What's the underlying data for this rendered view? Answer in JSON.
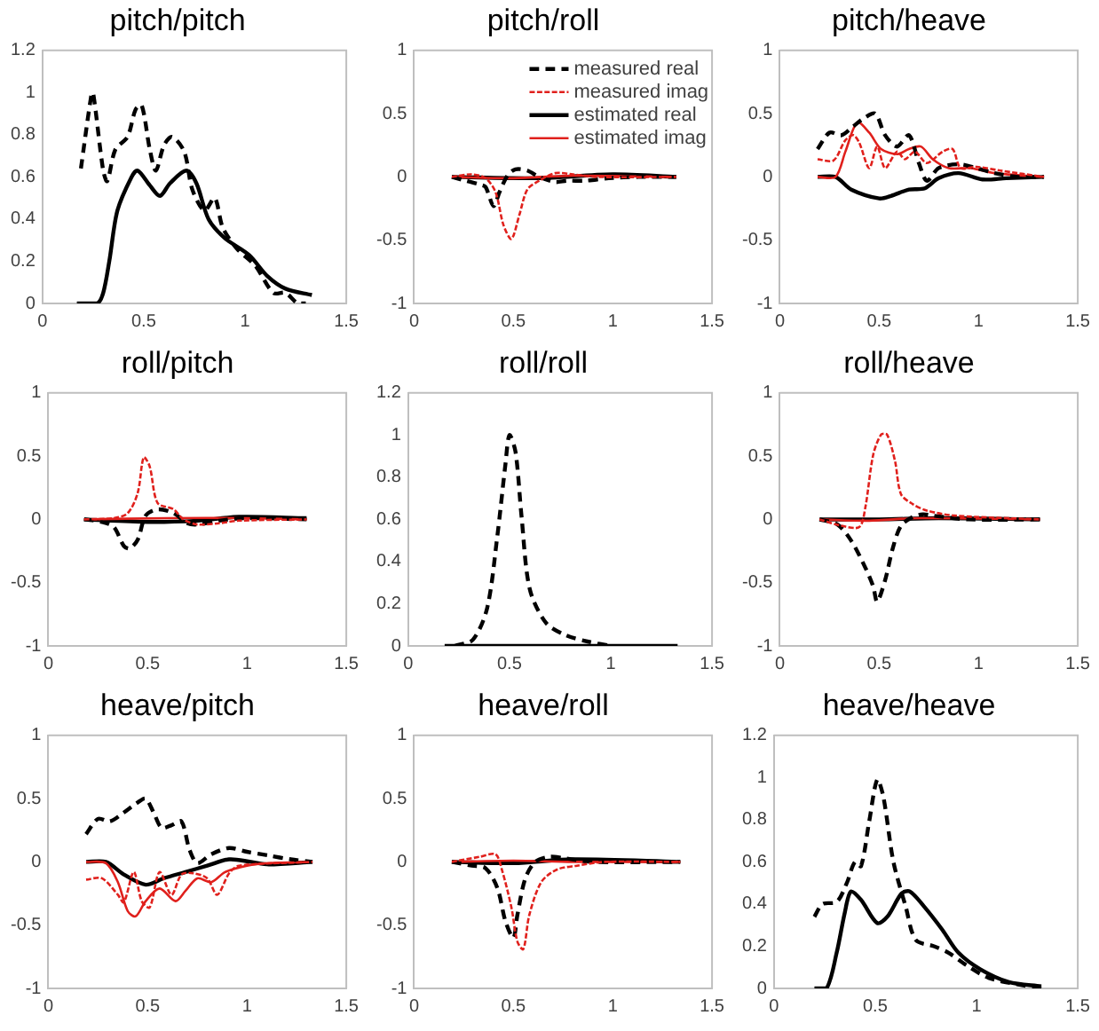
{
  "chart_data": [
    {
      "type": "line",
      "title": "pitch/pitch",
      "xlim": [
        0,
        1.5
      ],
      "xticks": [
        0,
        0.5,
        1,
        1.5
      ],
      "ylim": [
        0,
        1.2
      ],
      "yticks": [
        0,
        0.2,
        0.4,
        0.6,
        0.8,
        1,
        1.2
      ],
      "grid": false,
      "legend": false,
      "series": [
        {
          "color": "#000000",
          "line_style": "dashed",
          "x": [
            0.19,
            0.24,
            0.25,
            0.3,
            0.32,
            0.36,
            0.42,
            0.46,
            0.49,
            0.53,
            0.56,
            0.6,
            0.64,
            0.7,
            0.74,
            0.8,
            0.85,
            0.89,
            0.96,
            1.05,
            1.14,
            1.2,
            1.26,
            1.3
          ],
          "values": [
            0.64,
            0.98,
            1.0,
            0.63,
            0.58,
            0.73,
            0.79,
            0.92,
            0.94,
            0.73,
            0.63,
            0.75,
            0.79,
            0.72,
            0.54,
            0.44,
            0.5,
            0.36,
            0.26,
            0.18,
            0.05,
            0.05,
            0,
            0
          ]
        },
        {
          "color": "#000000",
          "line_style": "solid",
          "x": [
            0.17,
            0.27,
            0.3,
            0.33,
            0.37,
            0.44,
            0.47,
            0.53,
            0.58,
            0.63,
            0.71,
            0.76,
            0.82,
            0.9,
            1.02,
            1.11,
            1.2,
            1.33
          ],
          "values": [
            0,
            0,
            0.05,
            0.2,
            0.44,
            0.6,
            0.63,
            0.56,
            0.51,
            0.57,
            0.63,
            0.57,
            0.4,
            0.31,
            0.23,
            0.13,
            0.07,
            0.04
          ]
        }
      ]
    },
    {
      "type": "line",
      "title": "pitch/roll",
      "xlim": [
        0,
        1.5
      ],
      "xticks": [
        0,
        0.5,
        1,
        1.5
      ],
      "ylim": [
        -1,
        1
      ],
      "yticks": [
        -1,
        -0.5,
        0,
        0.5,
        1
      ],
      "grid": false,
      "legend": "top right",
      "series": [
        {
          "name": "measured real",
          "color": "#000000",
          "line_style": "dashed",
          "x": [
            0.19,
            0.26,
            0.33,
            0.36,
            0.4,
            0.43,
            0.47,
            0.51,
            0.57,
            0.63,
            0.71,
            0.77,
            0.86,
            0.98,
            1.13,
            1.32
          ],
          "values": [
            0,
            -0.03,
            -0.06,
            -0.08,
            -0.23,
            -0.12,
            0.01,
            0.06,
            0.05,
            0,
            -0.04,
            -0.03,
            -0.03,
            -0.01,
            0,
            0
          ]
        },
        {
          "name": "measured imag",
          "color": "#e0201c",
          "line_style": "dashed",
          "x": [
            0.19,
            0.29,
            0.36,
            0.41,
            0.45,
            0.49,
            0.53,
            0.57,
            0.63,
            0.71,
            0.8,
            0.92,
            1.32
          ],
          "values": [
            0,
            0.02,
            -0.01,
            -0.12,
            -0.38,
            -0.49,
            -0.3,
            -0.1,
            -0.03,
            0.03,
            0.02,
            0,
            0
          ]
        },
        {
          "name": "estimated real",
          "color": "#000000",
          "line_style": "solid",
          "x": [
            0.19,
            0.62,
            1.0,
            1.32
          ],
          "values": [
            0,
            -0.01,
            0.02,
            0
          ]
        },
        {
          "name": "estimated imag",
          "color": "#e0201c",
          "line_style": "solid",
          "x": [
            0.19,
            0.5,
            0.8,
            1.32
          ],
          "values": [
            0,
            -0.01,
            0.01,
            0
          ]
        }
      ]
    },
    {
      "type": "line",
      "title": "pitch/heave",
      "xlim": [
        0,
        1.5
      ],
      "xticks": [
        0,
        0.5,
        1,
        1.5
      ],
      "ylim": [
        -1,
        1
      ],
      "yticks": [
        -1,
        -0.5,
        0,
        0.5,
        1
      ],
      "grid": false,
      "legend": false,
      "series": [
        {
          "color": "#000000",
          "line_style": "dashed",
          "x": [
            0.19,
            0.25,
            0.31,
            0.37,
            0.42,
            0.48,
            0.53,
            0.59,
            0.65,
            0.7,
            0.74,
            0.8,
            0.9,
            0.99,
            1.08,
            1.2,
            1.33
          ],
          "values": [
            0.22,
            0.35,
            0.33,
            0.4,
            0.46,
            0.5,
            0.33,
            0.24,
            0.33,
            0.11,
            -0.03,
            0.07,
            0.1,
            0.07,
            0.03,
            0,
            0
          ]
        },
        {
          "color": "#e0201c",
          "line_style": "dashed",
          "x": [
            0.19,
            0.27,
            0.33,
            0.37,
            0.4,
            0.45,
            0.49,
            0.53,
            0.59,
            0.63,
            0.68,
            0.74,
            0.82,
            0.87,
            0.91,
            0.99,
            1.11,
            1.33
          ],
          "values": [
            0.14,
            0.13,
            0.29,
            0.33,
            0.27,
            0.07,
            0.24,
            0.07,
            0.2,
            0.14,
            0.2,
            0.11,
            0.2,
            0.22,
            0.07,
            0.08,
            0.05,
            0
          ]
        },
        {
          "color": "#000000",
          "line_style": "solid",
          "x": [
            0.19,
            0.28,
            0.36,
            0.5,
            0.56,
            0.65,
            0.73,
            0.8,
            0.9,
            1.02,
            1.14,
            1.33
          ],
          "values": [
            0,
            0,
            -0.1,
            -0.17,
            -0.15,
            -0.1,
            -0.09,
            -0.01,
            0.03,
            -0.02,
            -0.01,
            0
          ]
        },
        {
          "color": "#e0201c",
          "line_style": "solid",
          "x": [
            0.19,
            0.28,
            0.33,
            0.39,
            0.45,
            0.51,
            0.59,
            0.65,
            0.71,
            0.77,
            0.85,
            0.96,
            1.08,
            1.33
          ],
          "values": [
            0,
            0,
            0.2,
            0.43,
            0.35,
            0.22,
            0.18,
            0.22,
            0.24,
            0.14,
            0.07,
            0.07,
            0.03,
            0
          ]
        }
      ]
    },
    {
      "type": "line",
      "title": "roll/pitch",
      "xlim": [
        0,
        1.5
      ],
      "xticks": [
        0,
        0.5,
        1,
        1.5
      ],
      "ylim": [
        -1,
        1
      ],
      "yticks": [
        -1,
        -0.5,
        0,
        0.5,
        1
      ],
      "grid": false,
      "legend": false,
      "series": [
        {
          "color": "#000000",
          "line_style": "dashed",
          "x": [
            0.18,
            0.27,
            0.33,
            0.38,
            0.41,
            0.45,
            0.49,
            0.55,
            0.63,
            0.7,
            0.75,
            0.86,
            1.0,
            1.3
          ],
          "values": [
            0,
            -0.02,
            -0.06,
            -0.21,
            -0.23,
            -0.16,
            0.03,
            0.08,
            0.05,
            -0.03,
            -0.04,
            -0.01,
            0.01,
            0
          ]
        },
        {
          "color": "#e0201c",
          "line_style": "dashed",
          "x": [
            0.18,
            0.33,
            0.4,
            0.45,
            0.48,
            0.51,
            0.55,
            0.63,
            0.68,
            0.75,
            0.86,
            0.96,
            1.3
          ],
          "values": [
            0,
            0.01,
            0.05,
            0.21,
            0.49,
            0.42,
            0.13,
            0.08,
            0,
            -0.04,
            -0.03,
            -0.01,
            0
          ]
        },
        {
          "color": "#000000",
          "line_style": "solid",
          "x": [
            0.18,
            0.5,
            0.75,
            0.96,
            1.3
          ],
          "values": [
            0,
            -0.02,
            -0.01,
            0.02,
            0.01
          ]
        },
        {
          "color": "#e0201c",
          "line_style": "solid",
          "x": [
            0.18,
            0.6,
            1.0,
            1.3
          ],
          "values": [
            0,
            0.01,
            0.01,
            0
          ]
        }
      ]
    },
    {
      "type": "line",
      "title": "roll/roll",
      "xlim": [
        0,
        1.5
      ],
      "xticks": [
        0,
        0.5,
        1,
        1.5
      ],
      "ylim": [
        0,
        1.2
      ],
      "yticks": [
        0,
        0.2,
        0.4,
        0.6,
        0.8,
        1,
        1.2
      ],
      "grid": false,
      "legend": false,
      "series": [
        {
          "color": "#000000",
          "line_style": "dashed",
          "x": [
            0.23,
            0.32,
            0.39,
            0.44,
            0.48,
            0.5,
            0.53,
            0.56,
            0.6,
            0.68,
            0.78,
            0.89,
            1.0
          ],
          "values": [
            0,
            0.03,
            0.18,
            0.52,
            0.86,
            1.0,
            0.92,
            0.61,
            0.27,
            0.11,
            0.05,
            0.02,
            0
          ]
        },
        {
          "color": "#000000",
          "line_style": "solid",
          "x": [
            0.18,
            0.6,
            1.0,
            1.33
          ],
          "values": [
            0,
            0,
            0,
            0
          ]
        }
      ]
    },
    {
      "type": "line",
      "title": "roll/heave",
      "xlim": [
        0,
        1.5
      ],
      "xticks": [
        0,
        0.5,
        1,
        1.5
      ],
      "ylim": [
        -1,
        1
      ],
      "yticks": [
        -1,
        -0.5,
        0,
        0.5,
        1
      ],
      "grid": false,
      "legend": false,
      "series": [
        {
          "color": "#000000",
          "line_style": "dashed",
          "x": [
            0.2,
            0.29,
            0.36,
            0.43,
            0.47,
            0.49,
            0.53,
            0.57,
            0.61,
            0.67,
            0.72,
            0.77,
            0.95,
            1.31
          ],
          "values": [
            0,
            -0.04,
            -0.17,
            -0.38,
            -0.53,
            -0.65,
            -0.48,
            -0.22,
            -0.05,
            0.02,
            0.04,
            0.03,
            0,
            0
          ]
        },
        {
          "color": "#e0201c",
          "line_style": "dashed",
          "x": [
            0.2,
            0.31,
            0.4,
            0.43,
            0.47,
            0.51,
            0.54,
            0.58,
            0.61,
            0.67,
            0.74,
            0.88,
            1.31
          ],
          "values": [
            0,
            -0.05,
            -0.06,
            0.09,
            0.51,
            0.67,
            0.67,
            0.46,
            0.2,
            0.12,
            0.07,
            0.03,
            0
          ]
        },
        {
          "color": "#000000",
          "line_style": "solid",
          "x": [
            0.2,
            0.5,
            0.8,
            1.31
          ],
          "values": [
            0,
            0,
            0.01,
            0
          ]
        },
        {
          "color": "#e0201c",
          "line_style": "solid",
          "x": [
            0.2,
            0.45,
            0.7,
            1.31
          ],
          "values": [
            0,
            -0.01,
            0.01,
            0
          ]
        }
      ]
    },
    {
      "type": "line",
      "title": "heave/pitch",
      "xlim": [
        0,
        1.5
      ],
      "xticks": [
        0,
        0.5,
        1,
        1.5
      ],
      "ylim": [
        -1,
        1
      ],
      "yticks": [
        -1,
        -0.5,
        0,
        0.5,
        1
      ],
      "grid": false,
      "legend": false,
      "series": [
        {
          "color": "#000000",
          "line_style": "dashed",
          "x": [
            0.19,
            0.25,
            0.31,
            0.38,
            0.45,
            0.49,
            0.53,
            0.57,
            0.62,
            0.67,
            0.71,
            0.75,
            0.82,
            0.91,
            1.0,
            1.11,
            1.22,
            1.33
          ],
          "values": [
            0.22,
            0.34,
            0.32,
            0.39,
            0.47,
            0.5,
            0.39,
            0.27,
            0.29,
            0.32,
            0.1,
            -0.01,
            0.06,
            0.11,
            0.08,
            0.05,
            0.02,
            0
          ]
        },
        {
          "color": "#e0201c",
          "line_style": "dashed",
          "x": [
            0.19,
            0.27,
            0.35,
            0.38,
            0.43,
            0.47,
            0.51,
            0.56,
            0.62,
            0.67,
            0.73,
            0.8,
            0.85,
            0.91,
            0.96,
            1.33
          ],
          "values": [
            -0.14,
            -0.13,
            -0.26,
            -0.32,
            -0.08,
            -0.31,
            -0.36,
            -0.08,
            -0.26,
            -0.1,
            -0.09,
            -0.13,
            -0.26,
            -0.09,
            -0.03,
            0
          ]
        },
        {
          "color": "#000000",
          "line_style": "solid",
          "x": [
            0.19,
            0.29,
            0.38,
            0.49,
            0.58,
            0.69,
            0.8,
            0.91,
            1.02,
            1.11,
            1.33
          ],
          "values": [
            0,
            0,
            -0.1,
            -0.18,
            -0.13,
            -0.08,
            -0.03,
            0.02,
            0,
            -0.02,
            0
          ]
        },
        {
          "color": "#e0201c",
          "line_style": "solid",
          "x": [
            0.19,
            0.29,
            0.35,
            0.4,
            0.44,
            0.49,
            0.56,
            0.64,
            0.69,
            0.75,
            0.82,
            0.89,
            1.0,
            1.11,
            1.33
          ],
          "values": [
            0,
            -0.01,
            -0.16,
            -0.39,
            -0.43,
            -0.31,
            -0.21,
            -0.31,
            -0.23,
            -0.13,
            -0.16,
            -0.08,
            -0.03,
            -0.01,
            0
          ]
        }
      ]
    },
    {
      "type": "line",
      "title": "heave/roll",
      "xlim": [
        0,
        1.5
      ],
      "xticks": [
        0,
        0.5,
        1,
        1.5
      ],
      "ylim": [
        -1,
        1
      ],
      "yticks": [
        -1,
        -0.5,
        0,
        0.5,
        1
      ],
      "grid": false,
      "legend": false,
      "series": [
        {
          "color": "#000000",
          "line_style": "dashed",
          "x": [
            0.19,
            0.29,
            0.36,
            0.42,
            0.46,
            0.5,
            0.52,
            0.56,
            0.61,
            0.68,
            0.75,
            0.9,
            1.34
          ],
          "values": [
            0,
            -0.03,
            -0.05,
            -0.21,
            -0.47,
            -0.6,
            -0.42,
            -0.13,
            0,
            0.04,
            0.03,
            0,
            0
          ]
        },
        {
          "color": "#e0201c",
          "line_style": "dashed",
          "x": [
            0.19,
            0.33,
            0.41,
            0.44,
            0.49,
            0.52,
            0.55,
            0.58,
            0.64,
            0.72,
            0.82,
            0.96,
            1.34
          ],
          "values": [
            0,
            0.04,
            0.06,
            -0.05,
            -0.36,
            -0.63,
            -0.69,
            -0.42,
            -0.16,
            -0.06,
            -0.03,
            0,
            0
          ]
        },
        {
          "color": "#000000",
          "line_style": "solid",
          "x": [
            0.19,
            0.5,
            0.8,
            1.34
          ],
          "values": [
            0,
            -0.01,
            0.02,
            0
          ]
        },
        {
          "color": "#e0201c",
          "line_style": "solid",
          "x": [
            0.19,
            0.5,
            0.8,
            1.34
          ],
          "values": [
            0,
            0.01,
            0,
            0
          ]
        }
      ]
    },
    {
      "type": "line",
      "title": "heave/heave",
      "xlim": [
        0,
        1.5
      ],
      "xticks": [
        0,
        0.5,
        1,
        1.5
      ],
      "ylim": [
        0,
        1.2
      ],
      "yticks": [
        0,
        0.2,
        0.4,
        0.6,
        0.8,
        1,
        1.2
      ],
      "grid": false,
      "legend": false,
      "series": [
        {
          "color": "#000000",
          "line_style": "dashed",
          "x": [
            0.2,
            0.24,
            0.31,
            0.36,
            0.4,
            0.43,
            0.47,
            0.51,
            0.54,
            0.59,
            0.65,
            0.7,
            0.79,
            0.86,
            0.95,
            1.06,
            1.2,
            1.32
          ],
          "values": [
            0.34,
            0.4,
            0.41,
            0.5,
            0.6,
            0.58,
            0.79,
            0.99,
            0.91,
            0.6,
            0.39,
            0.23,
            0.2,
            0.17,
            0.11,
            0.05,
            0.02,
            0
          ]
        },
        {
          "color": "#000000",
          "line_style": "solid",
          "x": [
            0.2,
            0.26,
            0.31,
            0.35,
            0.38,
            0.43,
            0.51,
            0.56,
            0.63,
            0.67,
            0.74,
            0.83,
            0.91,
            1.02,
            1.16,
            1.32
          ],
          "values": [
            0,
            0,
            0.17,
            0.36,
            0.46,
            0.42,
            0.31,
            0.34,
            0.45,
            0.46,
            0.39,
            0.28,
            0.17,
            0.09,
            0.03,
            0.01
          ]
        }
      ]
    }
  ]
}
